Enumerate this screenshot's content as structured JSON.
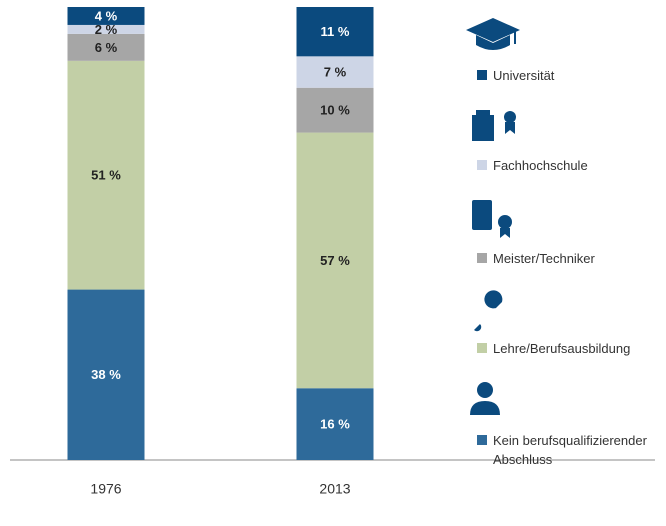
{
  "chart_data": {
    "type": "stacked_bar",
    "categories": [
      "1976",
      "2013"
    ],
    "ylim": [
      0,
      101
    ],
    "series": [
      {
        "name": "Kein berufsqualifizierender Abschluss",
        "color": "#2e6a9a",
        "values": [
          38,
          16
        ],
        "value_labels": [
          "38 %",
          "16 %"
        ]
      },
      {
        "name": "Lehre/Berufsausbildung",
        "color": "#c2cfa6",
        "values": [
          51,
          57
        ],
        "value_labels": [
          "51 %",
          "57 %"
        ]
      },
      {
        "name": "Meister/Techniker",
        "color": "#a6a6a6",
        "values": [
          6,
          10
        ],
        "value_labels": [
          "6 %",
          "10 %"
        ]
      },
      {
        "name": "Fachhochschule",
        "color": "#cdd5e6",
        "values": [
          2,
          7
        ],
        "value_labels": [
          "2 %",
          "7 %"
        ]
      },
      {
        "name": "Universität",
        "color": "#0b4a7e",
        "values": [
          4,
          11
        ],
        "value_labels": [
          "4 %",
          "11 %"
        ]
      }
    ]
  }
}
